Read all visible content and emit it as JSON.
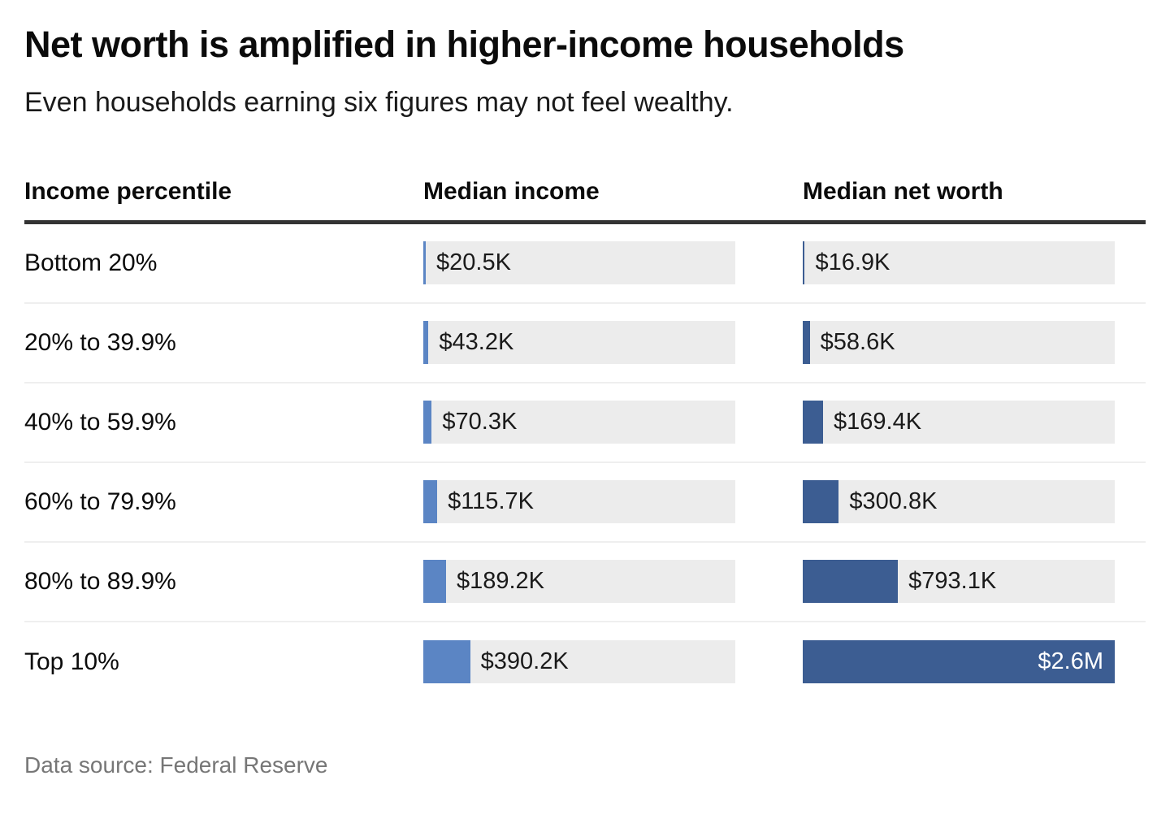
{
  "header": {
    "title": "Net worth is amplified in higher-income households",
    "subtitle": "Even households earning six figures may not feel wealthy."
  },
  "table": {
    "columns": {
      "percentile": "Income percentile",
      "income": "Median income",
      "net_worth": "Median net worth"
    },
    "rows": [
      {
        "percentile": "Bottom 20%",
        "income": {
          "label": "$20.5K",
          "value": 20500,
          "label_inside": false
        },
        "net_worth": {
          "label": "$16.9K",
          "value": 16900,
          "label_inside": false
        }
      },
      {
        "percentile": "20% to 39.9%",
        "income": {
          "label": "$43.2K",
          "value": 43200,
          "label_inside": false
        },
        "net_worth": {
          "label": "$58.6K",
          "value": 58600,
          "label_inside": false
        }
      },
      {
        "percentile": "40% to 59.9%",
        "income": {
          "label": "$70.3K",
          "value": 70300,
          "label_inside": false
        },
        "net_worth": {
          "label": "$169.4K",
          "value": 169400,
          "label_inside": false
        }
      },
      {
        "percentile": "60% to 79.9%",
        "income": {
          "label": "$115.7K",
          "value": 115700,
          "label_inside": false
        },
        "net_worth": {
          "label": "$300.8K",
          "value": 300800,
          "label_inside": false
        }
      },
      {
        "percentile": "80% to 89.9%",
        "income": {
          "label": "$189.2K",
          "value": 189200,
          "label_inside": false
        },
        "net_worth": {
          "label": "$793.1K",
          "value": 793100,
          "label_inside": false
        }
      },
      {
        "percentile": "Top 10%",
        "income": {
          "label": "$390.2K",
          "value": 390200,
          "label_inside": false
        },
        "net_worth": {
          "label": "$2.6M",
          "value": 2600000,
          "label_inside": true
        }
      }
    ]
  },
  "footer": {
    "source": "Data source: Federal Reserve"
  },
  "chart_data": {
    "type": "bar",
    "orientation": "horizontal",
    "title": "Net worth is amplified in higher-income households",
    "subtitle": "Even households earning six figures may not feel wealthy.",
    "categories": [
      "Bottom 20%",
      "20% to 39.9%",
      "40% to 59.9%",
      "60% to 79.9%",
      "80% to 89.9%",
      "Top 10%"
    ],
    "series": [
      {
        "name": "Median income",
        "values": [
          20500,
          43200,
          70300,
          115700,
          189200,
          390200
        ],
        "labels": [
          "$20.5K",
          "$43.2K",
          "$70.3K",
          "$115.7K",
          "$189.2K",
          "$390.2K"
        ],
        "color": "#5b85c4"
      },
      {
        "name": "Median net worth",
        "values": [
          16900,
          58600,
          169400,
          300800,
          793100,
          2600000
        ],
        "labels": [
          "$16.9K",
          "$58.6K",
          "$169.4K",
          "$300.8K",
          "$793.1K",
          "$2.6M"
        ],
        "color": "#3c5d92"
      }
    ],
    "xlim": [
      0,
      2600000
    ],
    "grid": false,
    "legend_position": "column-headers",
    "track_color": "#ececec",
    "annotation_source": "Data source: Federal Reserve"
  },
  "colors": {
    "income_bar": "#5b85c4",
    "networth_bar": "#3c5d92",
    "track": "#ececec",
    "header_rule": "#333333",
    "row_divider": "#efefef",
    "title_text": "#0b0b0b",
    "footer_text": "#767676",
    "background": "#ffffff"
  }
}
